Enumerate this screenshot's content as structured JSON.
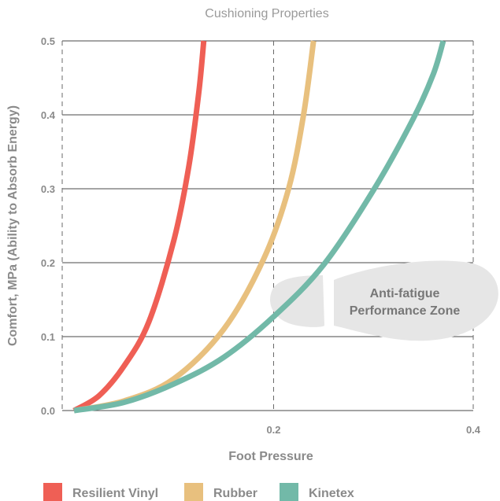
{
  "chart_data": {
    "type": "line",
    "title": "Cushioning Properties",
    "xlabel": "Foot Pressure",
    "ylabel": "Comfort, MPa (Ability to Absorb Energy)",
    "xlim": [
      0,
      0.4
    ],
    "ylim": [
      0,
      0.5
    ],
    "x_ticks": [
      "0.2",
      "0.4"
    ],
    "y_ticks": [
      "0.0",
      "0.1",
      "0.2",
      "0.3",
      "0.4",
      "0.5"
    ],
    "grid": "horizontal solid lines; dashed vertical lines at 0.2 and 0.4",
    "legend_position": "bottom",
    "series": [
      {
        "name": "Resilient Vinyl",
        "color": "#ef5f55",
        "x": [
          0.0,
          0.025,
          0.05,
          0.075,
          0.1,
          0.115,
          0.125,
          0.13
        ],
        "y": [
          0.0,
          0.02,
          0.06,
          0.12,
          0.23,
          0.33,
          0.43,
          0.5
        ]
      },
      {
        "name": "Rubber",
        "color": "#e8c07e",
        "x": [
          0.0,
          0.05,
          0.1,
          0.15,
          0.19,
          0.215,
          0.23,
          0.24
        ],
        "y": [
          0.0,
          0.013,
          0.043,
          0.11,
          0.205,
          0.3,
          0.4,
          0.5
        ]
      },
      {
        "name": "Kinetex",
        "color": "#72b9a8",
        "x": [
          0.0,
          0.05,
          0.1,
          0.15,
          0.2,
          0.25,
          0.3,
          0.34,
          0.36,
          0.37
        ],
        "y": [
          0.0,
          0.011,
          0.036,
          0.072,
          0.127,
          0.197,
          0.298,
          0.395,
          0.455,
          0.5
        ]
      }
    ],
    "annotations": [
      {
        "text_line1": "Anti-fatigue",
        "text_line2": "Performance Zone",
        "shape": "footprint",
        "color": "#e6e6e6"
      }
    ]
  }
}
